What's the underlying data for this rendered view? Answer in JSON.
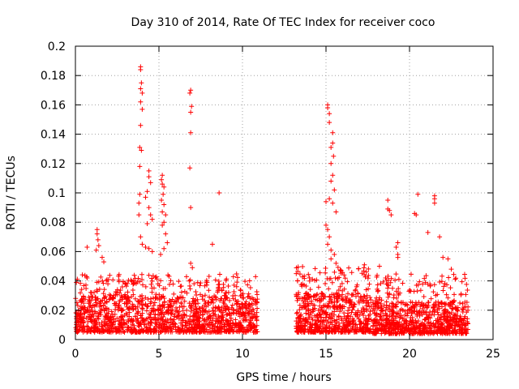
{
  "chart_data": {
    "type": "scatter",
    "title": "Day 310 of 2014, Rate Of TEC Index for receiver coco",
    "xlabel": "GPS time / hours",
    "ylabel": "ROTI / TECUs",
    "xlim": [
      0,
      25
    ],
    "ylim": [
      0,
      0.2
    ],
    "x_ticks": [
      0,
      5,
      10,
      15,
      20,
      25
    ],
    "y_ticks": [
      0,
      0.02,
      0.04,
      0.06,
      0.08,
      0.1,
      0.12,
      0.14,
      0.16,
      0.18,
      0.2
    ],
    "x_tick_labels": [
      "0",
      "5",
      "10",
      "15",
      "20",
      "25"
    ],
    "y_tick_labels": [
      "0",
      "0.02",
      "0.04",
      "0.06",
      "0.08",
      "0.1",
      "0.12",
      "0.14",
      "0.16",
      "0.18",
      "0.2"
    ],
    "grid": true,
    "marker": "+",
    "color": "#ff0000",
    "series": [
      {
        "name": "ROTI",
        "points": [
          [
            3.9,
            0.186
          ],
          [
            3.9,
            0.184
          ],
          [
            3.95,
            0.175
          ],
          [
            3.9,
            0.171
          ],
          [
            4.0,
            0.168
          ],
          [
            3.9,
            0.162
          ],
          [
            4.0,
            0.157
          ],
          [
            3.9,
            0.146
          ],
          [
            3.85,
            0.131
          ],
          [
            3.95,
            0.129
          ],
          [
            3.85,
            0.118
          ],
          [
            4.4,
            0.115
          ],
          [
            4.4,
            0.111
          ],
          [
            4.5,
            0.107
          ],
          [
            3.85,
            0.099
          ],
          [
            3.8,
            0.093
          ],
          [
            3.8,
            0.085
          ],
          [
            4.2,
            0.097
          ],
          [
            4.3,
            0.101
          ],
          [
            4.4,
            0.09
          ],
          [
            4.5,
            0.085
          ],
          [
            4.6,
            0.082
          ],
          [
            4.3,
            0.079
          ],
          [
            3.9,
            0.07
          ],
          [
            4.0,
            0.065
          ],
          [
            4.2,
            0.063
          ],
          [
            4.4,
            0.062
          ],
          [
            4.6,
            0.06
          ],
          [
            5.2,
            0.112
          ],
          [
            5.15,
            0.109
          ],
          [
            5.2,
            0.106
          ],
          [
            5.3,
            0.104
          ],
          [
            5.25,
            0.099
          ],
          [
            5.15,
            0.095
          ],
          [
            5.3,
            0.092
          ],
          [
            5.2,
            0.087
          ],
          [
            5.4,
            0.085
          ],
          [
            5.3,
            0.08
          ],
          [
            5.2,
            0.078
          ],
          [
            5.4,
            0.072
          ],
          [
            5.5,
            0.066
          ],
          [
            5.3,
            0.062
          ],
          [
            5.1,
            0.058
          ],
          [
            6.9,
            0.17
          ],
          [
            6.85,
            0.168
          ],
          [
            6.95,
            0.159
          ],
          [
            6.9,
            0.155
          ],
          [
            6.9,
            0.141
          ],
          [
            6.85,
            0.117
          ],
          [
            6.9,
            0.09
          ],
          [
            8.6,
            0.1
          ],
          [
            8.2,
            0.065
          ],
          [
            6.9,
            0.052
          ],
          [
            7.0,
            0.049
          ],
          [
            1.3,
            0.075
          ],
          [
            1.3,
            0.072
          ],
          [
            1.35,
            0.068
          ],
          [
            1.4,
            0.064
          ],
          [
            1.25,
            0.061
          ],
          [
            1.6,
            0.056
          ],
          [
            1.7,
            0.053
          ],
          [
            0.7,
            0.063
          ],
          [
            0.7,
            0.042
          ],
          [
            15.1,
            0.16
          ],
          [
            15.1,
            0.158
          ],
          [
            15.2,
            0.154
          ],
          [
            15.2,
            0.148
          ],
          [
            15.4,
            0.141
          ],
          [
            15.4,
            0.134
          ],
          [
            15.3,
            0.131
          ],
          [
            15.45,
            0.125
          ],
          [
            15.3,
            0.12
          ],
          [
            15.4,
            0.112
          ],
          [
            15.3,
            0.108
          ],
          [
            15.5,
            0.102
          ],
          [
            15.2,
            0.096
          ],
          [
            15.0,
            0.094
          ],
          [
            15.4,
            0.093
          ],
          [
            15.6,
            0.087
          ],
          [
            15.0,
            0.078
          ],
          [
            15.1,
            0.075
          ],
          [
            15.2,
            0.07
          ],
          [
            15.1,
            0.065
          ],
          [
            15.3,
            0.061
          ],
          [
            15.5,
            0.058
          ],
          [
            15.3,
            0.055
          ],
          [
            15.6,
            0.052
          ],
          [
            18.7,
            0.095
          ],
          [
            18.7,
            0.089
          ],
          [
            18.8,
            0.088
          ],
          [
            18.9,
            0.085
          ],
          [
            19.3,
            0.066
          ],
          [
            19.2,
            0.063
          ],
          [
            19.3,
            0.058
          ],
          [
            19.3,
            0.056
          ],
          [
            20.5,
            0.099
          ],
          [
            20.3,
            0.086
          ],
          [
            20.4,
            0.085
          ],
          [
            21.5,
            0.098
          ],
          [
            21.5,
            0.096
          ],
          [
            21.5,
            0.093
          ],
          [
            21.1,
            0.073
          ],
          [
            21.8,
            0.07
          ],
          [
            22.0,
            0.056
          ],
          [
            22.3,
            0.055
          ],
          [
            22.5,
            0.048
          ],
          [
            17.3,
            0.051
          ],
          [
            18.2,
            0.05
          ]
        ]
      }
    ],
    "dense_bands": [
      {
        "x_from": 0.0,
        "x_to": 10.9,
        "y_min": 0.005,
        "y_max": 0.03,
        "y_spike": 0.045,
        "count": 1400
      },
      {
        "x_from": 13.2,
        "x_to": 17.7,
        "y_min": 0.005,
        "y_max": 0.032,
        "y_spike": 0.05,
        "count": 650
      },
      {
        "x_from": 17.8,
        "x_to": 23.5,
        "y_min": 0.004,
        "y_max": 0.026,
        "y_spike": 0.045,
        "count": 800
      }
    ]
  }
}
